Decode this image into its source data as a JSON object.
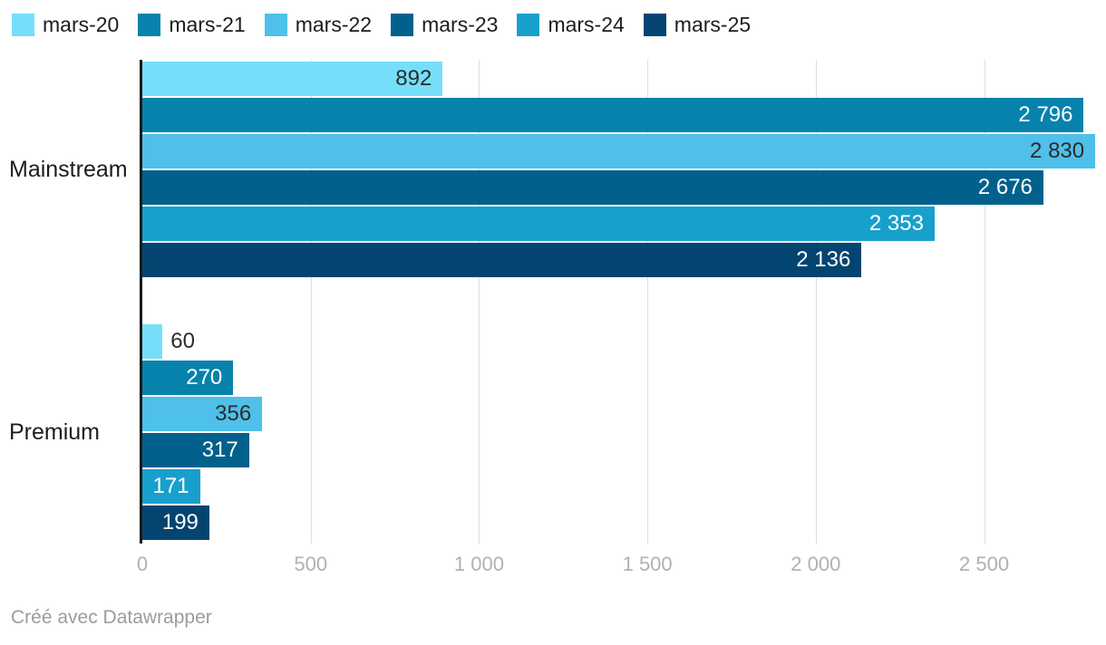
{
  "footer": {
    "credit": "Créé avec Datawrapper"
  },
  "colors": {
    "dark_text": "#2b2b2b",
    "white_text": "#ffffff",
    "category_text": "#1d1d1d",
    "tick_text": "#b1b1b1",
    "gridline": "#dedede",
    "axis_line": "#1a1a1a",
    "credit_text": "#9c9c9c"
  },
  "chart_data": {
    "type": "bar",
    "orientation": "horizontal",
    "grid": true,
    "legend_position": "top",
    "categories": [
      "Mainstream",
      "Premium"
    ],
    "series": [
      {
        "name": "mars-20",
        "color": "#75dff9",
        "label_style": "dark",
        "values": [
          892,
          60
        ],
        "labels": [
          "892",
          "60"
        ]
      },
      {
        "name": "mars-21",
        "color": "#0782ac",
        "label_style": "white",
        "values": [
          2796,
          270
        ],
        "labels": [
          "2 796",
          "270"
        ]
      },
      {
        "name": "mars-22",
        "color": "#4ec0e9",
        "label_style": "dark",
        "values": [
          2830,
          356
        ],
        "labels": [
          "2 830",
          "356"
        ]
      },
      {
        "name": "mars-23",
        "color": "#02608c",
        "label_style": "white",
        "values": [
          2676,
          317
        ],
        "labels": [
          "2 676",
          "317"
        ]
      },
      {
        "name": "mars-24",
        "color": "#18a0cd",
        "label_style": "white",
        "values": [
          2353,
          171
        ],
        "labels": [
          "2 353",
          "171"
        ]
      },
      {
        "name": "mars-25",
        "color": "#034570",
        "label_style": "white",
        "values": [
          2136,
          199
        ],
        "labels": [
          "2 136",
          "199"
        ]
      }
    ],
    "x_ticks": {
      "values": [
        0,
        500,
        1000,
        1500,
        2000,
        2500
      ],
      "labels": [
        "0",
        "500",
        "1 000",
        "1 500",
        "2 000",
        "2 500"
      ]
    },
    "xlim": [
      0,
      2862
    ]
  }
}
